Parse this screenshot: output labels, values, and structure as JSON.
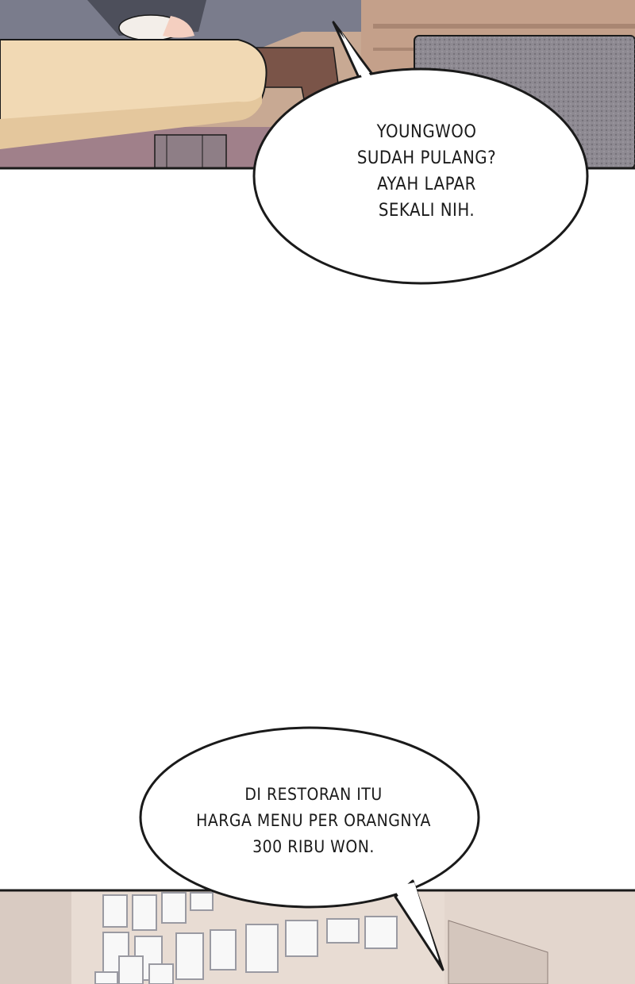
{
  "panels": [
    {
      "scene": "living-room-table",
      "bubble": {
        "lines": [
          "YOUNGWOO",
          "SUDAH PULANG?",
          "AYAH LAPAR",
          "SEKALI NIH."
        ]
      }
    },
    {
      "scene": "restaurant-wall-certificates",
      "bubble": {
        "lines": [
          "DI RESTORAN ITU",
          "HARGA MENU PER ORANGNYA",
          "300 RIBU WON."
        ]
      }
    }
  ],
  "colors": {
    "outline": "#1a1a1a",
    "table_wood": "#f1d9b4",
    "sofa_gray": "#5c5c66",
    "carpet": "#8e8a92",
    "wall_beige": "#e8dcd3",
    "frame_white": "#f8f8f8"
  }
}
